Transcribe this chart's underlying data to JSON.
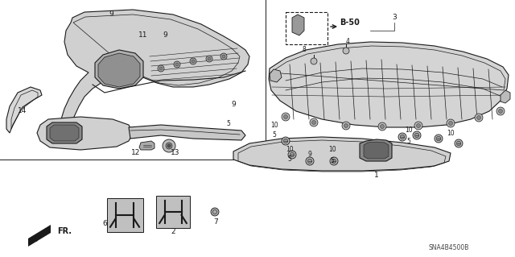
{
  "bg_color": "#ffffff",
  "line_color": "#1a1a1a",
  "gray_fill": "#c8c8c8",
  "light_gray": "#e0e0e0",
  "part_number_text": "SNA4B4500B",
  "fr_label": "FR.",
  "b50_label": "B-50",
  "label_fs": 6.5,
  "small_fs": 5.5
}
